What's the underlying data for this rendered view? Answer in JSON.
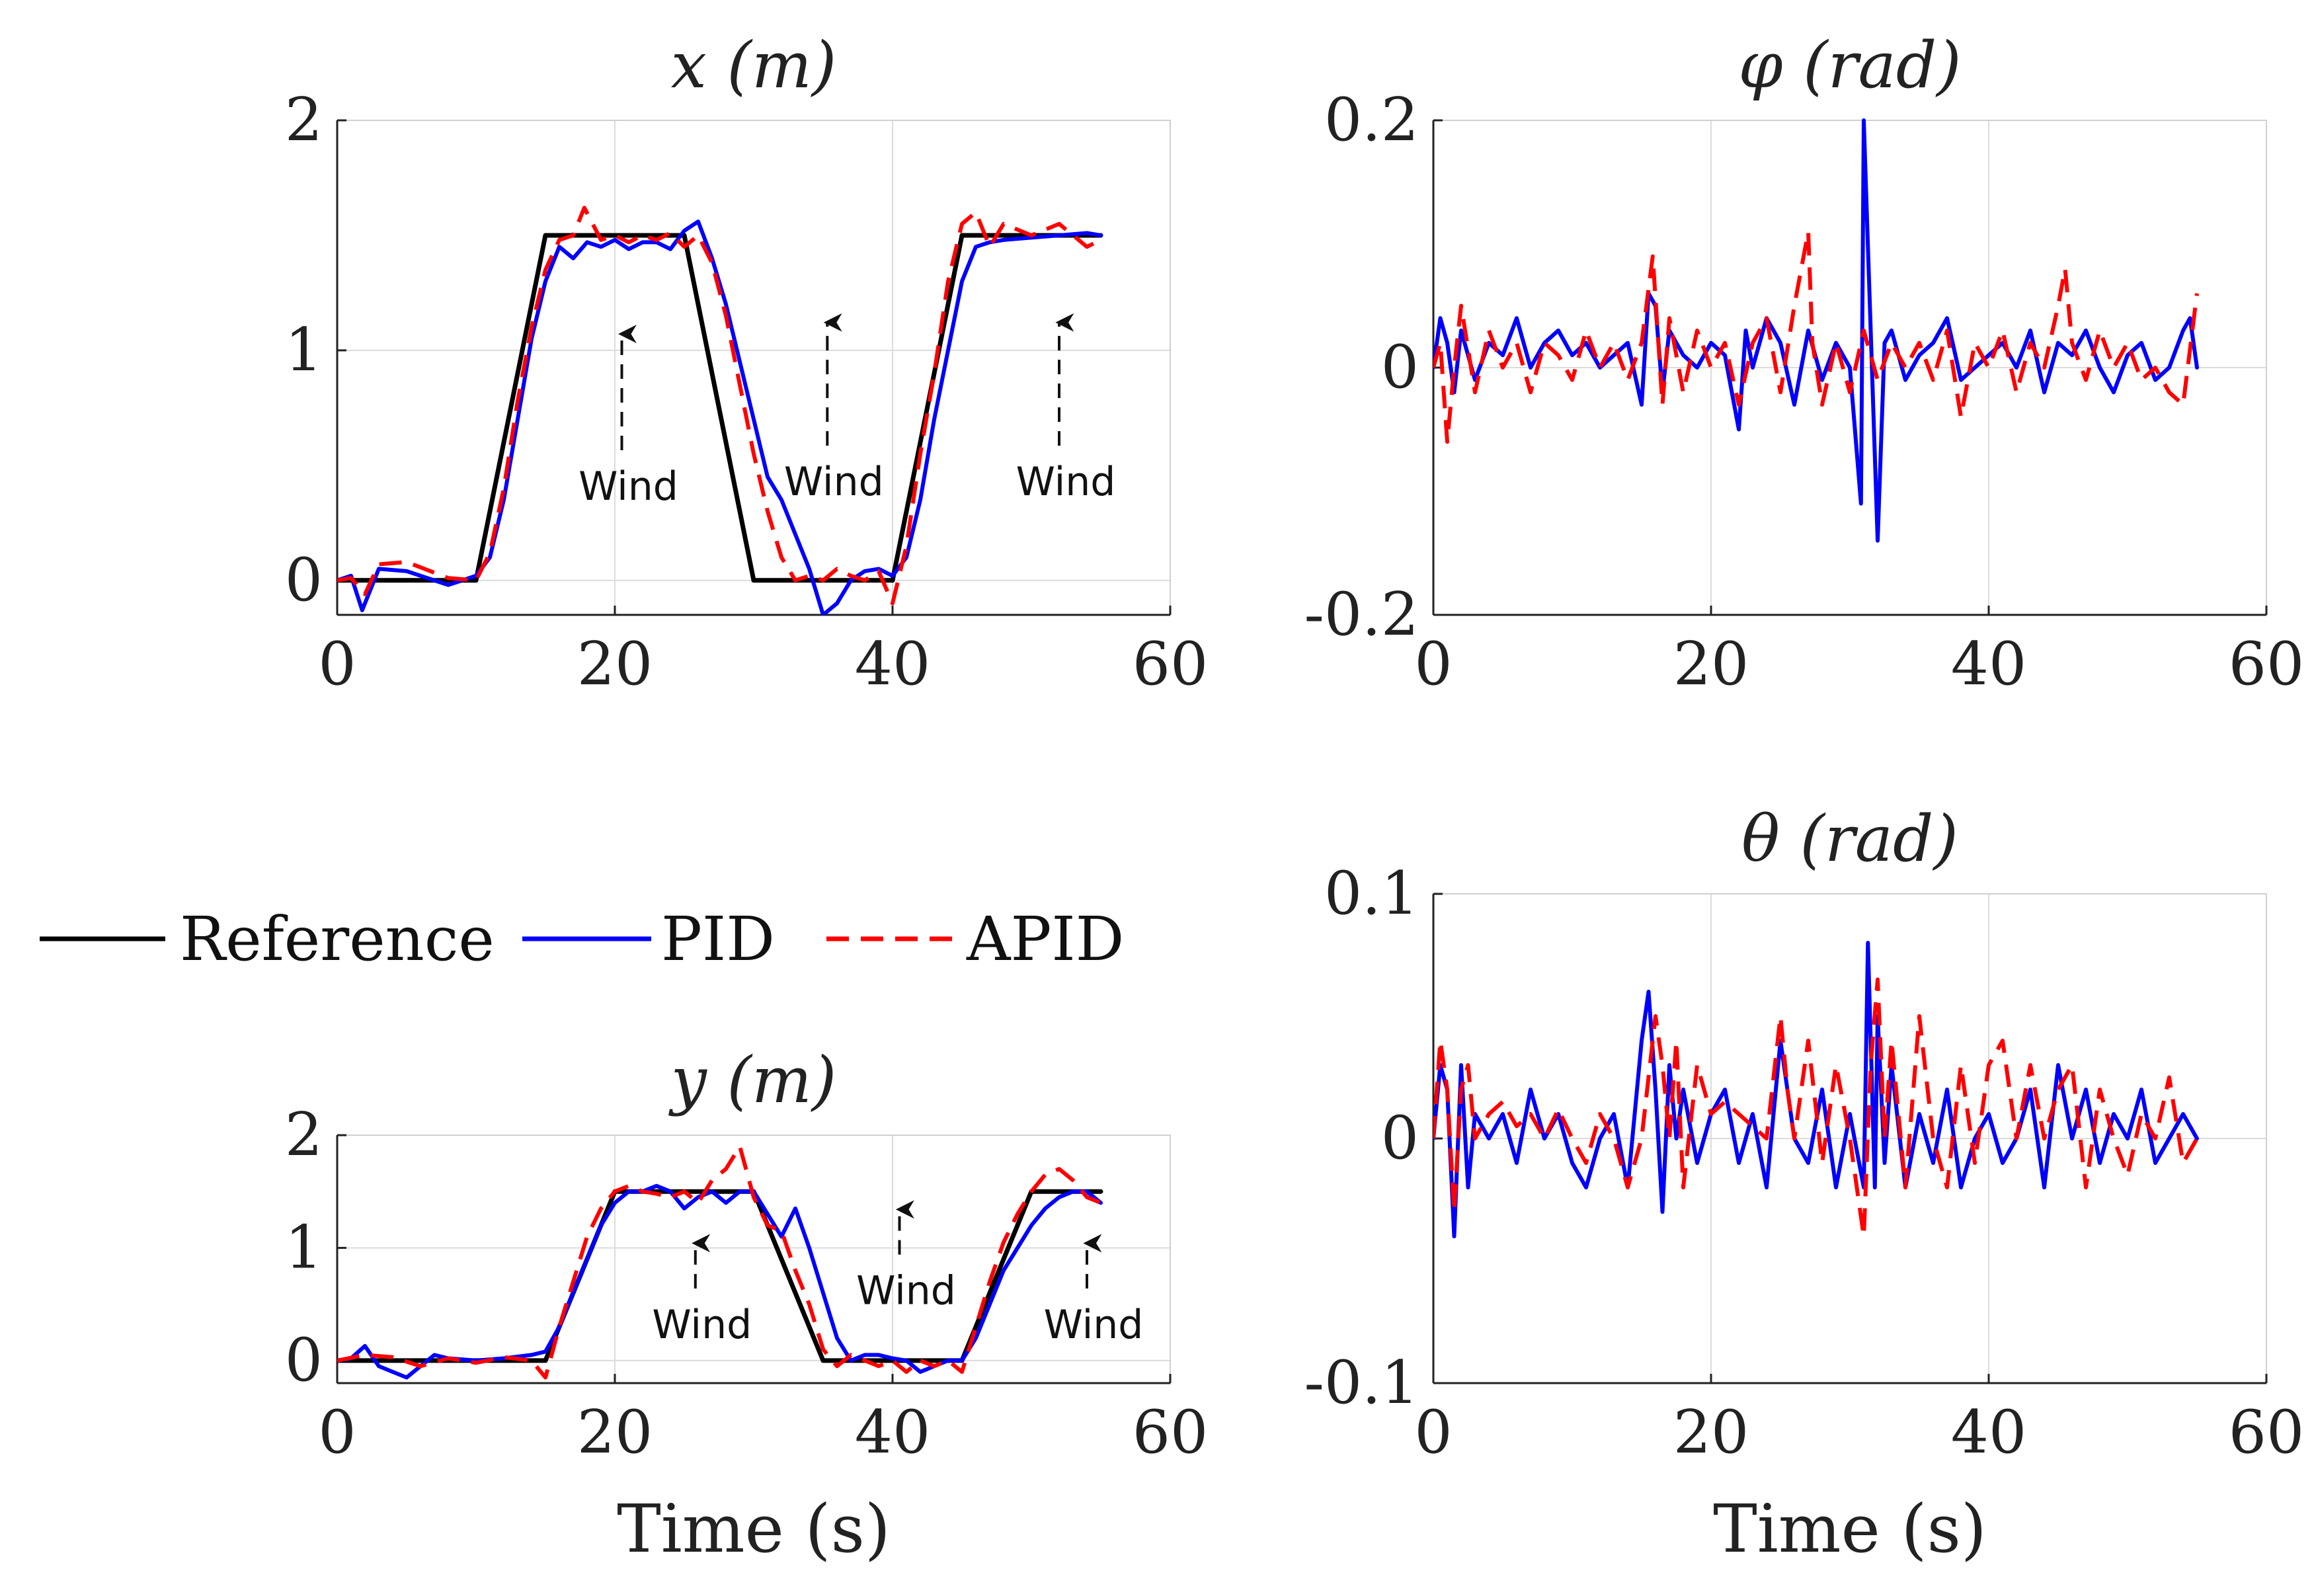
{
  "legend": {
    "items": [
      {
        "label": "Reference",
        "color": "#000000",
        "dash": "solid"
      },
      {
        "label": "PID",
        "color": "#0000ff",
        "dash": "solid"
      },
      {
        "label": "APID",
        "color": "#ff0000",
        "dash": "dashed"
      }
    ]
  },
  "chart_data": [
    {
      "id": "x-plot",
      "type": "line",
      "title": "x (m)",
      "xlabel": "",
      "xlim": [
        0,
        60
      ],
      "ylim": [
        -0.15,
        2
      ],
      "xticks": [
        0,
        20,
        40,
        60
      ],
      "yticks": [
        0,
        1,
        2
      ],
      "grid": true,
      "series": [
        {
          "name": "Reference",
          "color": "#000000",
          "x": [
            0,
            10,
            15,
            25,
            30,
            40,
            45,
            55
          ],
          "y": [
            0,
            0,
            1.5,
            1.5,
            0,
            0,
            1.5,
            1.5
          ]
        },
        {
          "name": "PID",
          "color": "#0000ff",
          "x": [
            0,
            1,
            1.8,
            3,
            5,
            8,
            10,
            11,
            12,
            13,
            14,
            15,
            16,
            17,
            18,
            19,
            20,
            21,
            22,
            23,
            24,
            25,
            26,
            27,
            28,
            29,
            30,
            31,
            32,
            33,
            34,
            35,
            36,
            37,
            38,
            39,
            40,
            41,
            42,
            43,
            44,
            45,
            46,
            47,
            48,
            50,
            52,
            54,
            55
          ],
          "y": [
            0,
            0.02,
            -0.13,
            0.05,
            0.04,
            -0.02,
            0.02,
            0.1,
            0.35,
            0.7,
            1.05,
            1.3,
            1.45,
            1.4,
            1.47,
            1.45,
            1.48,
            1.44,
            1.47,
            1.47,
            1.44,
            1.52,
            1.56,
            1.4,
            1.2,
            0.95,
            0.7,
            0.45,
            0.35,
            0.2,
            0.05,
            -0.15,
            -0.1,
            0.0,
            0.04,
            0.05,
            0.02,
            0.1,
            0.35,
            0.7,
            1.0,
            1.3,
            1.45,
            1.47,
            1.48,
            1.49,
            1.5,
            1.51,
            1.5
          ]
        },
        {
          "name": "APID",
          "color": "#ff0000",
          "x": [
            0,
            1,
            2,
            3,
            5,
            8,
            10,
            11,
            12,
            13,
            14,
            15,
            16,
            17,
            17.8,
            19,
            20,
            21,
            22,
            23,
            24,
            25,
            26,
            27,
            28,
            29,
            30,
            31,
            32,
            33,
            34,
            35,
            36,
            37,
            38,
            39,
            40,
            41,
            42,
            43,
            44,
            45,
            46,
            47,
            48,
            50,
            52,
            54,
            55
          ],
          "y": [
            0,
            0.01,
            -0.06,
            0.07,
            0.08,
            0.01,
            0.0,
            0.12,
            0.4,
            0.78,
            1.1,
            1.35,
            1.48,
            1.5,
            1.62,
            1.48,
            1.5,
            1.47,
            1.5,
            1.48,
            1.51,
            1.45,
            1.5,
            1.38,
            1.15,
            0.85,
            0.55,
            0.3,
            0.1,
            0.0,
            0.02,
            0.0,
            0.05,
            0.02,
            0.0,
            0.04,
            -0.1,
            0.15,
            0.55,
            0.9,
            1.3,
            1.55,
            1.6,
            1.45,
            1.55,
            1.5,
            1.55,
            1.45,
            1.48
          ]
        }
      ],
      "annotations": [
        {
          "text": "Wind",
          "x": 20.5,
          "y_label": 0.35,
          "y_tip": 1.1
        },
        {
          "text": "Wind",
          "x": 35.3,
          "y_label": 0.37,
          "y_tip": 1.15
        },
        {
          "text": "Wind",
          "x": 52,
          "y_label": 0.37,
          "y_tip": 1.15
        }
      ]
    },
    {
      "id": "phi-plot",
      "type": "line",
      "title": "φ (rad)",
      "xlabel": "",
      "xlim": [
        0,
        60
      ],
      "ylim": [
        -0.2,
        0.2
      ],
      "xticks": [
        0,
        20,
        40,
        60
      ],
      "yticks": [
        -0.2,
        0,
        0.2
      ],
      "grid": true,
      "series": [
        {
          "name": "PID",
          "color": "#0000ff",
          "x": [
            0,
            0.5,
            1,
            1.5,
            2,
            3,
            4,
            5,
            6,
            7,
            8,
            9,
            10,
            11,
            12,
            13,
            14,
            15,
            15.5,
            16,
            16.5,
            17,
            18,
            19,
            20,
            21,
            22,
            22.5,
            23,
            24,
            25,
            26,
            27,
            28,
            29,
            30,
            30.8,
            31,
            31.5,
            32,
            32.5,
            33,
            34,
            35,
            36,
            37,
            38,
            39,
            40,
            41,
            42,
            43,
            44,
            45,
            46,
            47,
            48,
            49,
            50,
            51,
            52,
            53,
            54,
            54.5,
            55
          ],
          "y": [
            0,
            0.04,
            0.02,
            -0.02,
            0.03,
            -0.01,
            0.02,
            0.01,
            0.04,
            0.0,
            0.02,
            0.03,
            0.01,
            0.02,
            0.0,
            0.01,
            0.02,
            -0.03,
            0.06,
            0.05,
            -0.02,
            0.03,
            0.01,
            0.0,
            0.02,
            0.01,
            -0.05,
            0.03,
            0.0,
            0.04,
            0.02,
            -0.03,
            0.03,
            -0.01,
            0.02,
            0.0,
            -0.11,
            0.2,
            0.03,
            -0.14,
            0.02,
            0.03,
            -0.01,
            0.01,
            0.02,
            0.04,
            -0.01,
            0.0,
            0.01,
            0.02,
            0.0,
            0.03,
            -0.02,
            0.02,
            0.01,
            0.03,
            0.0,
            -0.02,
            0.01,
            0.02,
            -0.01,
            0.0,
            0.03,
            0.04,
            0.0
          ]
        },
        {
          "name": "APID",
          "color": "#ff0000",
          "x": [
            0,
            0.5,
            1,
            1.5,
            2,
            3,
            4,
            5,
            6,
            7,
            8,
            9,
            10,
            11,
            12,
            13,
            14,
            15,
            15.8,
            16.5,
            17,
            18,
            19,
            20,
            21,
            22,
            23,
            24,
            25,
            26,
            27,
            27.3,
            28,
            29,
            30,
            31,
            32,
            33,
            34,
            35,
            36,
            37,
            38,
            39,
            40,
            41,
            42,
            43,
            44,
            45,
            45.5,
            46,
            47,
            48,
            49,
            50,
            51,
            52,
            53,
            54,
            55
          ],
          "y": [
            0,
            0.02,
            -0.06,
            0.0,
            0.05,
            -0.02,
            0.03,
            0.0,
            0.02,
            -0.02,
            0.02,
            0.01,
            -0.01,
            0.03,
            0.0,
            0.02,
            -0.01,
            0.02,
            0.09,
            -0.03,
            0.04,
            -0.02,
            0.03,
            0.0,
            0.02,
            -0.03,
            0.02,
            0.04,
            -0.02,
            0.05,
            0.11,
            0.02,
            -0.03,
            0.02,
            -0.02,
            0.03,
            -0.01,
            0.02,
            0.0,
            0.02,
            -0.01,
            0.03,
            -0.04,
            0.02,
            0.0,
            0.03,
            -0.02,
            0.02,
            0.0,
            0.05,
            0.08,
            0.02,
            -0.01,
            0.03,
            0.0,
            0.02,
            -0.01,
            0.0,
            -0.02,
            -0.03,
            0.06
          ]
        }
      ],
      "annotations": []
    },
    {
      "id": "y-plot",
      "type": "line",
      "title": "y (m)",
      "xlabel": "Time (s)",
      "xlim": [
        0,
        60
      ],
      "ylim": [
        -0.2,
        2
      ],
      "xticks": [
        0,
        20,
        40,
        60
      ],
      "yticks": [
        0,
        1,
        2
      ],
      "grid": true,
      "series": [
        {
          "name": "Reference",
          "color": "#000000",
          "x": [
            0,
            15,
            20,
            30,
            35,
            45,
            50,
            55
          ],
          "y": [
            0,
            0,
            1.5,
            1.5,
            0,
            0,
            1.5,
            1.5
          ]
        },
        {
          "name": "PID",
          "color": "#0000ff",
          "x": [
            0,
            1,
            2,
            3,
            4,
            5,
            6,
            7,
            8,
            10,
            12,
            14,
            15,
            16,
            17,
            18,
            19,
            20,
            21,
            22,
            23,
            24,
            25,
            26,
            27,
            28,
            29,
            30,
            31,
            32,
            33,
            34,
            35,
            36,
            37,
            38,
            39,
            40,
            41,
            42,
            43,
            44,
            45,
            46,
            47,
            48,
            49,
            50,
            51,
            52,
            53,
            54,
            55
          ],
          "y": [
            0,
            0.02,
            0.13,
            -0.05,
            -0.1,
            -0.15,
            -0.05,
            0.05,
            0.02,
            0.0,
            0.02,
            0.05,
            0.08,
            0.3,
            0.6,
            0.9,
            1.2,
            1.4,
            1.5,
            1.5,
            1.55,
            1.5,
            1.35,
            1.45,
            1.5,
            1.4,
            1.5,
            1.5,
            1.3,
            1.1,
            1.35,
            1.0,
            0.6,
            0.2,
            0.0,
            0.05,
            0.05,
            0.02,
            0.0,
            -0.1,
            -0.05,
            0.0,
            0.0,
            0.2,
            0.5,
            0.8,
            1.0,
            1.2,
            1.35,
            1.45,
            1.5,
            1.5,
            1.4
          ]
        },
        {
          "name": "APID",
          "color": "#ff0000",
          "x": [
            0,
            2,
            4,
            6,
            8,
            10,
            12,
            14,
            15,
            16,
            17,
            18,
            19,
            20,
            21,
            22,
            23,
            24,
            25,
            26,
            27,
            28,
            29,
            30,
            31,
            32,
            33,
            34,
            35,
            36,
            37,
            38,
            39,
            40,
            41,
            42,
            43,
            44,
            45,
            46,
            47,
            48,
            49,
            50,
            51,
            52,
            53,
            54,
            55
          ],
          "y": [
            0.0,
            0.05,
            0.03,
            -0.05,
            0.02,
            -0.02,
            0.03,
            0.0,
            -0.15,
            0.3,
            0.7,
            1.1,
            1.35,
            1.5,
            1.55,
            1.5,
            1.48,
            1.45,
            1.5,
            1.4,
            1.6,
            1.7,
            1.9,
            1.45,
            1.2,
            1.15,
            0.8,
            0.5,
            0.1,
            -0.05,
            0.05,
            0.0,
            -0.05,
            0.0,
            -0.1,
            0.0,
            -0.05,
            0.0,
            -0.1,
            0.3,
            0.7,
            1.05,
            1.3,
            1.5,
            1.65,
            1.7,
            1.6,
            1.45,
            1.4
          ]
        }
      ],
      "annotations": [
        {
          "text": "Wind",
          "x": 25.8,
          "y_label": 0.2,
          "y_tip": 1.1
        },
        {
          "text": "Wind",
          "x": 40.5,
          "y_label": 0.5,
          "y_tip": 1.4
        },
        {
          "text": "Wind",
          "x": 54,
          "y_label": 0.2,
          "y_tip": 1.1
        }
      ]
    },
    {
      "id": "theta-plot",
      "type": "line",
      "title": "θ (rad)",
      "xlabel": "Time (s)",
      "xlim": [
        0,
        60
      ],
      "ylim": [
        -0.1,
        0.1
      ],
      "xticks": [
        0,
        20,
        40,
        60
      ],
      "yticks": [
        -0.1,
        0,
        0.1
      ],
      "grid": true,
      "series": [
        {
          "name": "PID",
          "color": "#0000ff",
          "x": [
            0,
            0.5,
            1,
            1.5,
            2,
            2.5,
            3,
            4,
            5,
            6,
            7,
            8,
            9,
            10,
            11,
            12,
            13,
            14,
            15,
            15.5,
            16,
            16.5,
            17,
            17.5,
            18,
            19,
            20,
            21,
            22,
            23,
            24,
            25,
            25.5,
            26,
            27,
            28,
            29,
            30,
            31,
            31.3,
            31.8,
            32,
            32.5,
            33,
            34,
            35,
            36,
            37,
            38,
            39,
            40,
            41,
            42,
            43,
            44,
            45,
            46,
            47,
            48,
            49,
            50,
            51,
            52,
            53,
            54,
            55
          ],
          "y": [
            0,
            0.03,
            0.02,
            -0.04,
            0.03,
            -0.02,
            0.01,
            0.0,
            0.01,
            -0.01,
            0.02,
            0.0,
            0.01,
            -0.01,
            -0.02,
            0.0,
            0.01,
            -0.02,
            0.04,
            0.06,
            0.02,
            -0.03,
            0.03,
            0.0,
            0.02,
            -0.01,
            0.01,
            0.02,
            -0.01,
            0.01,
            -0.02,
            0.04,
            0.02,
            0.0,
            -0.01,
            0.02,
            -0.02,
            0.01,
            -0.02,
            0.08,
            -0.02,
            0.05,
            -0.01,
            0.03,
            -0.02,
            0.01,
            -0.01,
            0.02,
            -0.02,
            0.0,
            0.01,
            -0.01,
            0.0,
            0.02,
            -0.02,
            0.03,
            0.0,
            0.02,
            -0.01,
            0.01,
            0.0,
            0.02,
            -0.01,
            0.0,
            0.01,
            0.0
          ]
        },
        {
          "name": "APID",
          "color": "#ff0000",
          "x": [
            0,
            0.5,
            1,
            1.5,
            2,
            2.5,
            3,
            4,
            5,
            6,
            7,
            8,
            9,
            10,
            11,
            12,
            13,
            14,
            15,
            16,
            16.5,
            17,
            17.5,
            18,
            19,
            20,
            21,
            22,
            23,
            24,
            25,
            25.5,
            26,
            27,
            28,
            29,
            30,
            31,
            31.5,
            32,
            32.5,
            33,
            34,
            35,
            36,
            37,
            38,
            39,
            40,
            41,
            42,
            43,
            44,
            45,
            46,
            47,
            48,
            49,
            50,
            51,
            52,
            53,
            54,
            55
          ],
          "y": [
            0,
            0.04,
            0.02,
            -0.03,
            0.02,
            0.03,
            0.0,
            0.01,
            0.015,
            0.005,
            0.01,
            0.0,
            0.012,
            0.0,
            -0.01,
            0.01,
            0.0,
            -0.02,
            0.0,
            0.05,
            0.03,
            0.0,
            0.04,
            -0.02,
            0.03,
            0.01,
            0.015,
            0.01,
            0.005,
            0.0,
            0.05,
            0.02,
            0.0,
            0.04,
            -0.01,
            0.03,
            0.0,
            -0.04,
            0.03,
            0.065,
            0.0,
            0.04,
            -0.02,
            0.05,
            0.0,
            -0.02,
            0.03,
            -0.01,
            0.03,
            0.04,
            0.0,
            0.03,
            0.0,
            0.02,
            0.03,
            -0.02,
            0.02,
            0.0,
            -0.015,
            0.01,
            0.0,
            0.025,
            -0.01,
            0.0
          ]
        }
      ],
      "annotations": []
    }
  ]
}
